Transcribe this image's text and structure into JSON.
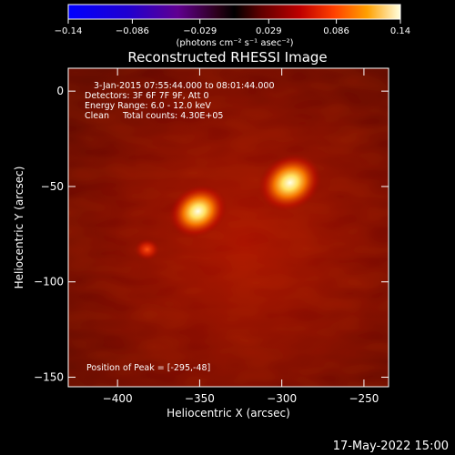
{
  "colorbar": {
    "tick_labels": [
      "−0.14",
      "−0.086",
      "−0.029",
      "0.029",
      "0.086",
      "0.14"
    ],
    "unit_label": "(photons cm⁻² s⁻¹ asec⁻²)"
  },
  "chart_data": {
    "type": "heatmap",
    "title": "Reconstructed RHESSI Image",
    "xlabel": "Heliocentric X (arcsec)",
    "ylabel": "Heliocentric Y (arcsec)",
    "xlim": [
      -430,
      -235
    ],
    "ylim": [
      -155,
      12
    ],
    "x_ticks": [
      -400,
      -350,
      -300,
      -250
    ],
    "y_ticks": [
      0,
      -50,
      -100,
      -150
    ],
    "x_tick_labels": [
      "−400",
      "−350",
      "−300",
      "−250"
    ],
    "y_tick_labels": [
      "0",
      "−50",
      "−100",
      "−150"
    ],
    "color_range": [
      -0.14,
      0.14
    ],
    "info_lines": [
      "3-Jan-2015 07:55:44.000 to 08:01:44.000",
      "Detectors: 3F 6F 7F 9F, Att 0",
      "Energy Range: 6.0 - 12.0 keV",
      "Clean     Total counts: 4.30E+05"
    ],
    "peak_label": "Position of Peak = [-295,-48]",
    "sources": [
      {
        "x": -295,
        "y": -48,
        "relative_intensity": 1.0
      },
      {
        "x": -351,
        "y": -63,
        "relative_intensity": 0.92
      },
      {
        "x": -382,
        "y": -83,
        "relative_intensity": 0.45
      }
    ]
  },
  "footer": {
    "date": "17-May-2022 15:00"
  }
}
